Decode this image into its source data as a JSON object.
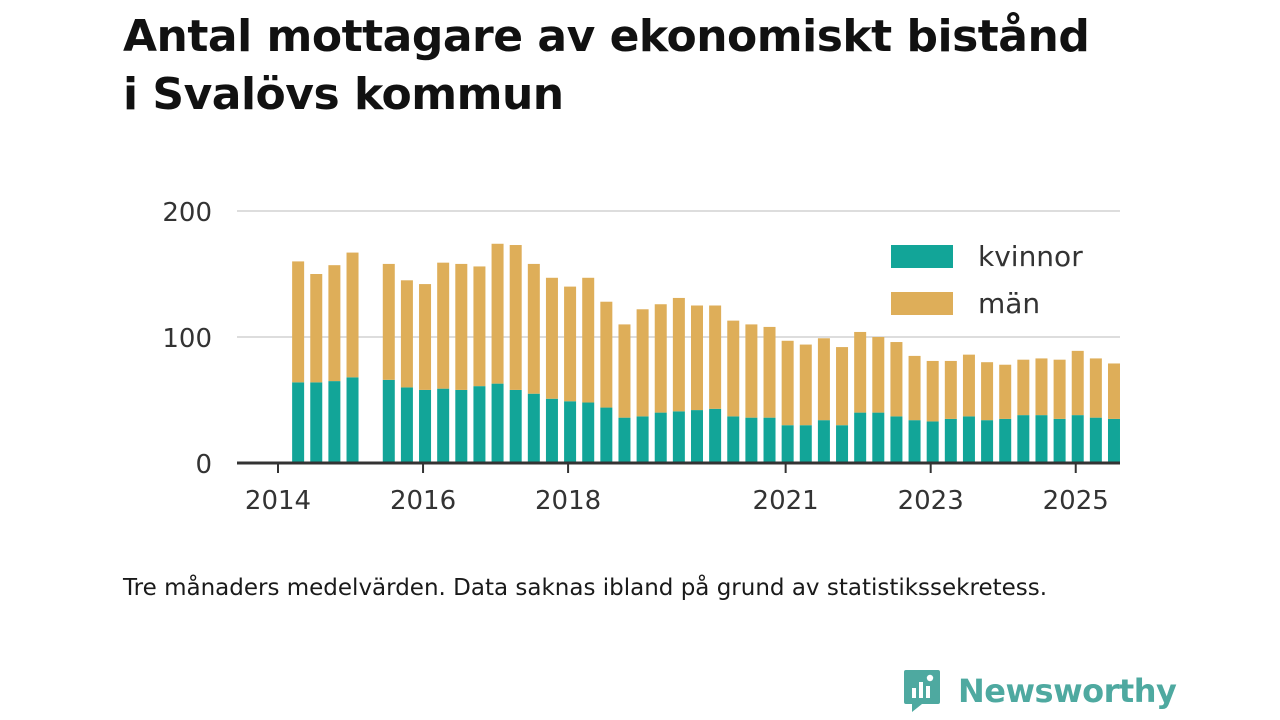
{
  "title_lines": [
    "Antal mottagare av ekonomiskt bistånd",
    "i Svalövs kommun"
  ],
  "note": "Tre månaders medelvärden. Data saknas ibland på grund av statistikssekretess.",
  "brand": "Newsworthy",
  "colors": {
    "kvinnor": "#12a598",
    "man": "#deae59",
    "grid": "#dddddd",
    "axis": "#333333",
    "text": "#333333",
    "brand": "#4ea9a0"
  },
  "chart_data": {
    "type": "bar",
    "stacked": true,
    "title": "Antal mottagare av ekonomiskt bistånd i Svalövs kommun",
    "ylim": [
      0,
      200
    ],
    "yticks": [
      0,
      100,
      200
    ],
    "xlim": [
      2014,
      2025.9
    ],
    "xticks": [
      2014,
      2016,
      2018,
      2021,
      2023,
      2025
    ],
    "legend": {
      "position": "top-right",
      "entries": [
        "kvinnor",
        "män"
      ]
    },
    "x": [
      2014.25,
      2014.5,
      2014.75,
      2015.0,
      2015.5,
      2015.75,
      2016.0,
      2016.25,
      2016.5,
      2016.75,
      2017.0,
      2017.25,
      2017.5,
      2017.75,
      2018.0,
      2018.25,
      2018.5,
      2018.75,
      2019.0,
      2019.25,
      2019.5,
      2019.75,
      2020.0,
      2020.25,
      2020.5,
      2020.75,
      2021.0,
      2021.25,
      2021.5,
      2021.75,
      2022.0,
      2022.25,
      2022.5,
      2022.75,
      2023.0,
      2023.25,
      2023.5,
      2023.75,
      2024.0,
      2024.25,
      2024.5,
      2024.75,
      2025.0,
      2025.25,
      2025.5
    ],
    "series": [
      {
        "name": "kvinnor",
        "values": [
          64,
          64,
          65,
          68,
          66,
          60,
          58,
          59,
          58,
          61,
          63,
          58,
          55,
          51,
          49,
          48,
          44,
          36,
          37,
          40,
          41,
          42,
          43,
          37,
          36,
          36,
          30,
          30,
          34,
          30,
          40,
          40,
          37,
          34,
          33,
          35,
          37,
          34,
          35,
          38,
          38,
          35,
          38,
          36,
          35
        ]
      },
      {
        "name": "män",
        "values": [
          96,
          86,
          92,
          99,
          92,
          85,
          84,
          100,
          100,
          95,
          111,
          115,
          103,
          96,
          91,
          99,
          84,
          74,
          85,
          86,
          90,
          83,
          82,
          76,
          74,
          72,
          67,
          64,
          65,
          62,
          64,
          60,
          59,
          51,
          48,
          46,
          49,
          46,
          43,
          44,
          45,
          47,
          51,
          47,
          44
        ]
      }
    ]
  }
}
